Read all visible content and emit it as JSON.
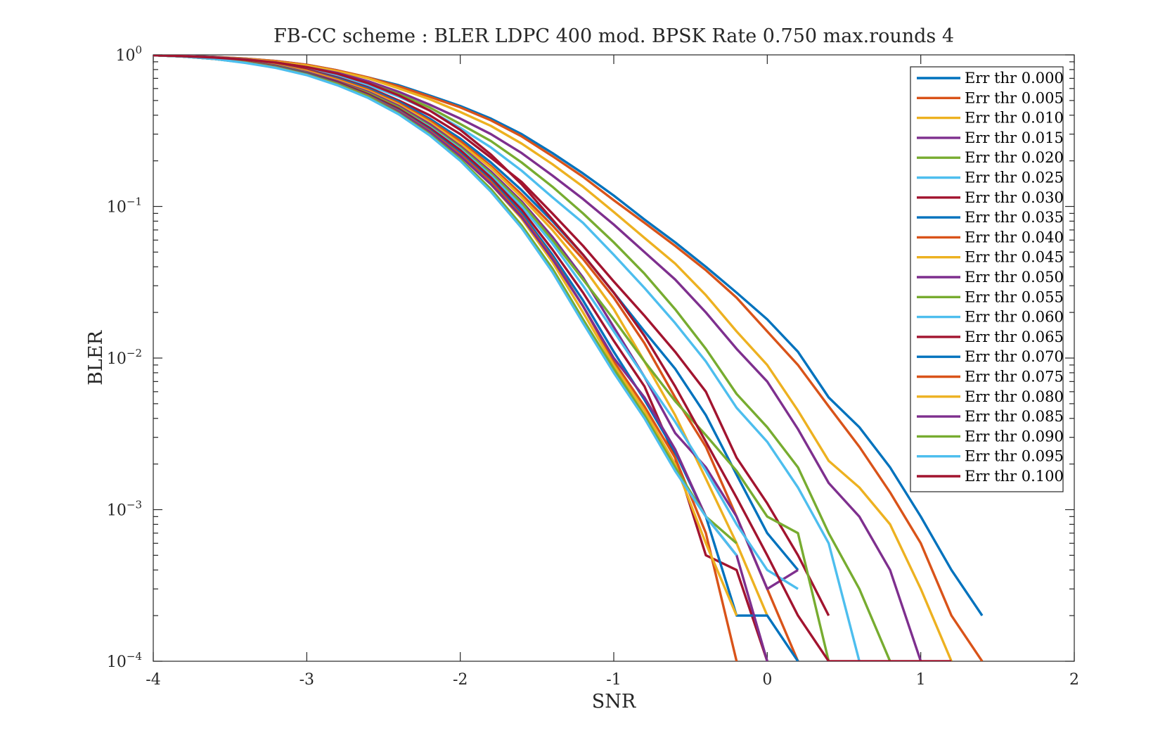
{
  "chart_data": {
    "type": "line",
    "title": "FB-CC scheme : BLER LDPC 400 mod. BPSK Rate 0.750 max.rounds 4",
    "xlabel": "SNR",
    "ylabel": "BLER",
    "xlim": [
      -4,
      2
    ],
    "ylim": [
      0.0001,
      1
    ],
    "yscale": "log",
    "grid": false,
    "legend_position": "top-right",
    "x_ticks": [
      -4,
      -3,
      -2,
      -1,
      0,
      1,
      2
    ],
    "x_tick_labels": [
      "-4",
      "-3",
      "-2",
      "-1",
      "0",
      "1",
      "2"
    ],
    "y_ticks": [
      0.0001,
      0.001,
      0.01,
      0.1,
      1
    ],
    "y_tick_base": [
      "10",
      "10",
      "10",
      "10",
      "10"
    ],
    "y_tick_exp": [
      "−4",
      "−3",
      "−2",
      "−1",
      "0"
    ],
    "series": [
      {
        "name": "Err thr 0.000",
        "color": "#0072BD",
        "x": [
          -4.0,
          -3.8,
          -3.6,
          -3.4,
          -3.2,
          -3.0,
          -2.8,
          -2.6,
          -2.4,
          -2.2,
          -2.0,
          -1.8,
          -1.6,
          -1.4,
          -1.2,
          -1.0,
          -0.8,
          -0.6,
          -0.4,
          -0.2,
          0.0,
          0.2,
          0.4,
          0.6,
          0.8,
          1.0,
          1.2,
          1.4
        ],
        "y": [
          0.995,
          0.985,
          0.97,
          0.945,
          0.91,
          0.86,
          0.79,
          0.71,
          0.63,
          0.54,
          0.46,
          0.38,
          0.3,
          0.225,
          0.165,
          0.118,
          0.082,
          0.058,
          0.04,
          0.027,
          0.018,
          0.011,
          0.0055,
          0.0035,
          0.0019,
          0.0009,
          0.0004,
          0.0002
        ]
      },
      {
        "name": "Err thr 0.005",
        "color": "#D95319",
        "x": [
          -4.0,
          -3.8,
          -3.6,
          -3.4,
          -3.2,
          -3.0,
          -2.8,
          -2.6,
          -2.4,
          -2.2,
          -2.0,
          -1.8,
          -1.6,
          -1.4,
          -1.2,
          -1.0,
          -0.8,
          -0.6,
          -0.4,
          -0.2,
          0.0,
          0.2,
          0.4,
          0.6,
          0.8,
          1.0,
          1.2,
          1.4
        ],
        "y": [
          0.995,
          0.985,
          0.97,
          0.945,
          0.91,
          0.86,
          0.79,
          0.71,
          0.62,
          0.53,
          0.45,
          0.37,
          0.29,
          0.215,
          0.157,
          0.11,
          0.078,
          0.055,
          0.038,
          0.025,
          0.015,
          0.009,
          0.0048,
          0.0026,
          0.0013,
          0.0006,
          0.0002,
          0.0001
        ]
      },
      {
        "name": "Err thr 0.010",
        "color": "#EDB120",
        "x": [
          -4.0,
          -3.8,
          -3.6,
          -3.4,
          -3.2,
          -3.0,
          -2.8,
          -2.6,
          -2.4,
          -2.2,
          -2.0,
          -1.8,
          -1.6,
          -1.4,
          -1.2,
          -1.0,
          -0.8,
          -0.6,
          -0.4,
          -0.2,
          0.0,
          0.2,
          0.4,
          0.6,
          0.8,
          1.0,
          1.2
        ],
        "y": [
          0.995,
          0.985,
          0.965,
          0.94,
          0.9,
          0.85,
          0.78,
          0.7,
          0.6,
          0.51,
          0.42,
          0.34,
          0.26,
          0.19,
          0.135,
          0.092,
          0.062,
          0.042,
          0.026,
          0.015,
          0.009,
          0.0045,
          0.0021,
          0.0014,
          0.0008,
          0.0003,
          0.0001
        ]
      },
      {
        "name": "Err thr 0.015",
        "color": "#7E2F8E",
        "x": [
          -4.0,
          -3.8,
          -3.6,
          -3.4,
          -3.2,
          -3.0,
          -2.8,
          -2.6,
          -2.4,
          -2.2,
          -2.0,
          -1.8,
          -1.6,
          -1.4,
          -1.2,
          -1.0,
          -0.8,
          -0.6,
          -0.4,
          -0.2,
          0.0,
          0.2,
          0.4,
          0.6,
          0.8,
          1.0
        ],
        "y": [
          0.995,
          0.985,
          0.965,
          0.935,
          0.89,
          0.83,
          0.76,
          0.67,
          0.57,
          0.47,
          0.38,
          0.3,
          0.225,
          0.16,
          0.112,
          0.076,
          0.05,
          0.033,
          0.02,
          0.0115,
          0.007,
          0.0034,
          0.0015,
          0.0009,
          0.0004,
          0.0001
        ]
      },
      {
        "name": "Err thr 0.020",
        "color": "#77AC30",
        "x": [
          -4.0,
          -3.8,
          -3.6,
          -3.4,
          -3.2,
          -3.0,
          -2.8,
          -2.6,
          -2.4,
          -2.2,
          -2.0,
          -1.8,
          -1.6,
          -1.4,
          -1.2,
          -1.0,
          -0.8,
          -0.6,
          -0.4,
          -0.2,
          0.0,
          0.2,
          0.4,
          0.6,
          0.8
        ],
        "y": [
          0.995,
          0.98,
          0.96,
          0.93,
          0.88,
          0.82,
          0.74,
          0.65,
          0.55,
          0.45,
          0.35,
          0.27,
          0.195,
          0.135,
          0.09,
          0.058,
          0.036,
          0.021,
          0.0115,
          0.0058,
          0.0035,
          0.0019,
          0.0007,
          0.0003,
          0.0001
        ]
      },
      {
        "name": "Err thr 0.025",
        "color": "#4DBEEE",
        "x": [
          -4.0,
          -3.8,
          -3.6,
          -3.4,
          -3.2,
          -3.0,
          -2.8,
          -2.6,
          -2.4,
          -2.2,
          -2.0,
          -1.8,
          -1.6,
          -1.4,
          -1.2,
          -1.0,
          -0.8,
          -0.6,
          -0.4,
          -0.2,
          0.0,
          0.2,
          0.4,
          0.6
        ],
        "y": [
          0.995,
          0.98,
          0.96,
          0.925,
          0.875,
          0.81,
          0.73,
          0.63,
          0.53,
          0.43,
          0.33,
          0.245,
          0.172,
          0.115,
          0.078,
          0.048,
          0.029,
          0.017,
          0.0095,
          0.0047,
          0.0028,
          0.0014,
          0.0006,
          0.0001
        ]
      },
      {
        "name": "Err thr 0.030",
        "color": "#A2142F",
        "x": [
          -4.0,
          -3.8,
          -3.6,
          -3.4,
          -3.2,
          -3.0,
          -2.8,
          -2.6,
          -2.4,
          -2.2,
          -2.0,
          -1.8,
          -1.6,
          -1.4,
          -1.2,
          -1.0,
          -0.8,
          -0.6,
          -0.4,
          -0.2,
          0.0,
          0.2,
          0.4
        ],
        "y": [
          0.995,
          0.98,
          0.955,
          0.92,
          0.87,
          0.8,
          0.71,
          0.61,
          0.5,
          0.4,
          0.3,
          0.21,
          0.145,
          0.09,
          0.055,
          0.032,
          0.019,
          0.011,
          0.006,
          0.0022,
          0.0011,
          0.0005,
          0.0002
        ]
      },
      {
        "name": "Err thr 0.035",
        "color": "#0072BD",
        "x": [
          -4.0,
          -3.8,
          -3.6,
          -3.4,
          -3.2,
          -3.0,
          -2.8,
          -2.6,
          -2.4,
          -2.2,
          -2.0,
          -1.8,
          -1.6,
          -1.4,
          -1.2,
          -1.0,
          -0.8,
          -0.6,
          -0.4,
          -0.2,
          0.0,
          0.2
        ],
        "y": [
          0.995,
          0.98,
          0.955,
          0.92,
          0.865,
          0.79,
          0.7,
          0.6,
          0.49,
          0.38,
          0.28,
          0.195,
          0.128,
          0.08,
          0.048,
          0.027,
          0.015,
          0.0085,
          0.0042,
          0.0017,
          0.0007,
          0.0004
        ]
      },
      {
        "name": "Err thr 0.040",
        "color": "#D95319",
        "x": [
          -4.0,
          -3.8,
          -3.6,
          -3.4,
          -3.2,
          -3.0,
          -2.8,
          -2.6,
          -2.4,
          -2.2,
          -2.0,
          -1.8,
          -1.6,
          -1.4,
          -1.2,
          -1.0,
          -0.8,
          -0.6,
          -0.4,
          -0.2,
          0.0,
          0.2
        ],
        "y": [
          0.995,
          0.98,
          0.955,
          0.915,
          0.86,
          0.79,
          0.69,
          0.59,
          0.48,
          0.37,
          0.27,
          0.185,
          0.12,
          0.075,
          0.045,
          0.025,
          0.0125,
          0.0055,
          0.0026,
          0.0009,
          0.0003,
          0.0001
        ]
      },
      {
        "name": "Err thr 0.045",
        "color": "#EDB120",
        "x": [
          -4.0,
          -3.8,
          -3.6,
          -3.4,
          -3.2,
          -3.0,
          -2.8,
          -2.6,
          -2.4,
          -2.2,
          -2.0,
          -1.8,
          -1.6,
          -1.4,
          -1.2,
          -1.0,
          -0.8,
          -0.6,
          -0.4,
          -0.2,
          0.0
        ],
        "y": [
          0.995,
          0.98,
          0.95,
          0.91,
          0.855,
          0.78,
          0.68,
          0.58,
          0.47,
          0.36,
          0.26,
          0.18,
          0.115,
          0.07,
          0.04,
          0.021,
          0.0095,
          0.0042,
          0.0016,
          0.0006,
          0.0002
        ]
      },
      {
        "name": "Err thr 0.050",
        "color": "#7E2F8E",
        "x": [
          -4.0,
          -3.8,
          -3.6,
          -3.4,
          -3.2,
          -3.0,
          -2.8,
          -2.6,
          -2.4,
          -2.2,
          -2.0,
          -1.8,
          -1.6,
          -1.4,
          -1.2,
          -1.0,
          -0.8,
          -0.6,
          -0.4,
          -0.2,
          0.0,
          0.2
        ],
        "y": [
          0.995,
          0.98,
          0.95,
          0.91,
          0.85,
          0.77,
          0.67,
          0.57,
          0.46,
          0.35,
          0.25,
          0.17,
          0.108,
          0.063,
          0.034,
          0.016,
          0.0075,
          0.0032,
          0.0019,
          0.0009,
          0.0003,
          0.0004
        ]
      },
      {
        "name": "Err thr 0.055",
        "color": "#77AC30",
        "x": [
          -4.0,
          -3.8,
          -3.6,
          -3.4,
          -3.2,
          -3.0,
          -2.8,
          -2.6,
          -2.4,
          -2.2,
          -2.0,
          -1.8,
          -1.6,
          -1.4,
          -1.2,
          -1.0,
          -0.8,
          -0.6,
          -0.4,
          -0.2,
          0.0,
          0.2,
          0.4
        ],
        "y": [
          0.995,
          0.975,
          0.95,
          0.905,
          0.845,
          0.76,
          0.66,
          0.56,
          0.45,
          0.34,
          0.245,
          0.165,
          0.105,
          0.06,
          0.033,
          0.018,
          0.0095,
          0.0052,
          0.0031,
          0.0018,
          0.0009,
          0.0007,
          0.0001
        ]
      },
      {
        "name": "Err thr 0.060",
        "color": "#4DBEEE",
        "x": [
          -4.0,
          -3.8,
          -3.6,
          -3.4,
          -3.2,
          -3.0,
          -2.8,
          -2.6,
          -2.4,
          -2.2,
          -2.0,
          -1.8,
          -1.6,
          -1.4,
          -1.2,
          -1.0,
          -0.8,
          -0.6,
          -0.4,
          -0.2,
          0.0,
          0.2
        ],
        "y": [
          0.995,
          0.975,
          0.945,
          0.9,
          0.84,
          0.755,
          0.655,
          0.55,
          0.44,
          0.335,
          0.24,
          0.16,
          0.1,
          0.057,
          0.03,
          0.015,
          0.0075,
          0.0038,
          0.0018,
          0.0008,
          0.0004,
          0.0003
        ]
      },
      {
        "name": "Err thr 0.065",
        "color": "#A2142F",
        "x": [
          -4.0,
          -3.8,
          -3.6,
          -3.4,
          -3.2,
          -3.0,
          -2.8,
          -2.6,
          -2.4,
          -2.2,
          -2.0,
          -1.8,
          -1.6,
          -1.4,
          -1.2,
          -1.0,
          -0.8,
          -0.6,
          -0.4,
          -0.2,
          0.0
        ],
        "y": [
          0.995,
          0.975,
          0.945,
          0.9,
          0.84,
          0.755,
          0.66,
          0.55,
          0.44,
          0.33,
          0.235,
          0.155,
          0.095,
          0.052,
          0.027,
          0.013,
          0.0065,
          0.0022,
          0.0005,
          0.0004,
          0.0001
        ]
      },
      {
        "name": "Err thr 0.070",
        "color": "#0072BD",
        "x": [
          -4.0,
          -3.8,
          -3.6,
          -3.4,
          -3.2,
          -3.0,
          -2.8,
          -2.6,
          -2.4,
          -2.2,
          -2.0,
          -1.8,
          -1.6,
          -1.4,
          -1.2,
          -1.0,
          -0.8,
          -0.6,
          -0.4,
          -0.2,
          0.0,
          0.2
        ],
        "y": [
          0.995,
          0.975,
          0.945,
          0.895,
          0.835,
          0.75,
          0.65,
          0.54,
          0.43,
          0.32,
          0.225,
          0.148,
          0.09,
          0.048,
          0.024,
          0.011,
          0.0053,
          0.0024,
          0.0009,
          0.0002,
          0.0002,
          0.0001
        ]
      },
      {
        "name": "Err thr 0.075",
        "color": "#D95319",
        "x": [
          -4.0,
          -3.8,
          -3.6,
          -3.4,
          -3.2,
          -3.0,
          -2.8,
          -2.6,
          -2.4,
          -2.2,
          -2.0,
          -1.8,
          -1.6,
          -1.4,
          -1.2,
          -1.0,
          -0.8,
          -0.6,
          -0.4,
          -0.2
        ],
        "y": [
          0.995,
          0.975,
          0.94,
          0.895,
          0.83,
          0.745,
          0.645,
          0.535,
          0.425,
          0.315,
          0.22,
          0.145,
          0.087,
          0.046,
          0.022,
          0.0095,
          0.0048,
          0.0022,
          0.0007,
          0.0001
        ]
      },
      {
        "name": "Err thr 0.080",
        "color": "#EDB120",
        "x": [
          -4.0,
          -3.8,
          -3.6,
          -3.4,
          -3.2,
          -3.0,
          -2.8,
          -2.6,
          -2.4,
          -2.2,
          -2.0,
          -1.8,
          -1.6,
          -1.4,
          -1.2,
          -1.0,
          -0.8,
          -0.6,
          -0.4,
          -0.2
        ],
        "y": [
          0.995,
          0.975,
          0.94,
          0.89,
          0.825,
          0.74,
          0.64,
          0.53,
          0.42,
          0.31,
          0.215,
          0.14,
          0.083,
          0.043,
          0.02,
          0.009,
          0.0045,
          0.002,
          0.0006,
          0.0002
        ]
      },
      {
        "name": "Err thr 0.085",
        "color": "#7E2F8E",
        "x": [
          -4.0,
          -3.8,
          -3.6,
          -3.4,
          -3.2,
          -3.0,
          -2.8,
          -2.6,
          -2.4,
          -2.2,
          -2.0,
          -1.8,
          -1.6,
          -1.4,
          -1.2,
          -1.0,
          -0.8,
          -0.6,
          -0.4,
          -0.2,
          0.0
        ],
        "y": [
          0.995,
          0.975,
          0.94,
          0.89,
          0.825,
          0.74,
          0.64,
          0.53,
          0.42,
          0.31,
          0.215,
          0.14,
          0.085,
          0.045,
          0.022,
          0.01,
          0.0055,
          0.0025,
          0.0009,
          0.0005,
          0.0001
        ]
      },
      {
        "name": "Err thr 0.090",
        "color": "#77AC30",
        "x": [
          -4.0,
          -3.8,
          -3.6,
          -3.4,
          -3.2,
          -3.0,
          -2.8,
          -2.6,
          -2.4,
          -2.2,
          -2.0,
          -1.8,
          -1.6,
          -1.4,
          -1.2,
          -1.0,
          -0.8,
          -0.6,
          -0.4,
          -0.2
        ],
        "y": [
          0.995,
          0.975,
          0.94,
          0.89,
          0.825,
          0.74,
          0.64,
          0.53,
          0.41,
          0.3,
          0.205,
          0.13,
          0.075,
          0.039,
          0.018,
          0.0085,
          0.0042,
          0.0019,
          0.0009,
          0.0006
        ]
      },
      {
        "name": "Err thr 0.095",
        "color": "#4DBEEE",
        "x": [
          -4.0,
          -3.8,
          -3.6,
          -3.4,
          -3.2,
          -3.0,
          -2.8,
          -2.6,
          -2.4,
          -2.2,
          -2.0,
          -1.8,
          -1.6,
          -1.4,
          -1.2,
          -1.0,
          -0.8,
          -0.6,
          -0.4,
          -0.2
        ],
        "y": [
          0.995,
          0.975,
          0.94,
          0.885,
          0.82,
          0.735,
          0.63,
          0.52,
          0.405,
          0.295,
          0.2,
          0.125,
          0.072,
          0.037,
          0.017,
          0.008,
          0.004,
          0.0018,
          0.0009,
          0.0005
        ]
      },
      {
        "name": "Err thr 0.100",
        "color": "#A2142F",
        "x": [
          -4.0,
          -3.8,
          -3.6,
          -3.4,
          -3.2,
          -3.0,
          -2.8,
          -2.6,
          -2.4,
          -2.2,
          -2.0,
          -1.8,
          -1.6,
          -1.4,
          -1.2,
          -1.0,
          -0.8,
          -0.6,
          -0.4,
          -0.2,
          0.0,
          0.2,
          0.4,
          0.6,
          0.8,
          1.0,
          1.2
        ],
        "y": [
          0.995,
          0.98,
          0.96,
          0.93,
          0.89,
          0.83,
          0.75,
          0.65,
          0.54,
          0.43,
          0.32,
          0.22,
          0.14,
          0.082,
          0.048,
          0.027,
          0.014,
          0.0065,
          0.0028,
          0.0012,
          0.0005,
          0.0002,
          0.0001,
          0.0001,
          0.0001,
          0.0001,
          0.0001
        ]
      }
    ]
  }
}
